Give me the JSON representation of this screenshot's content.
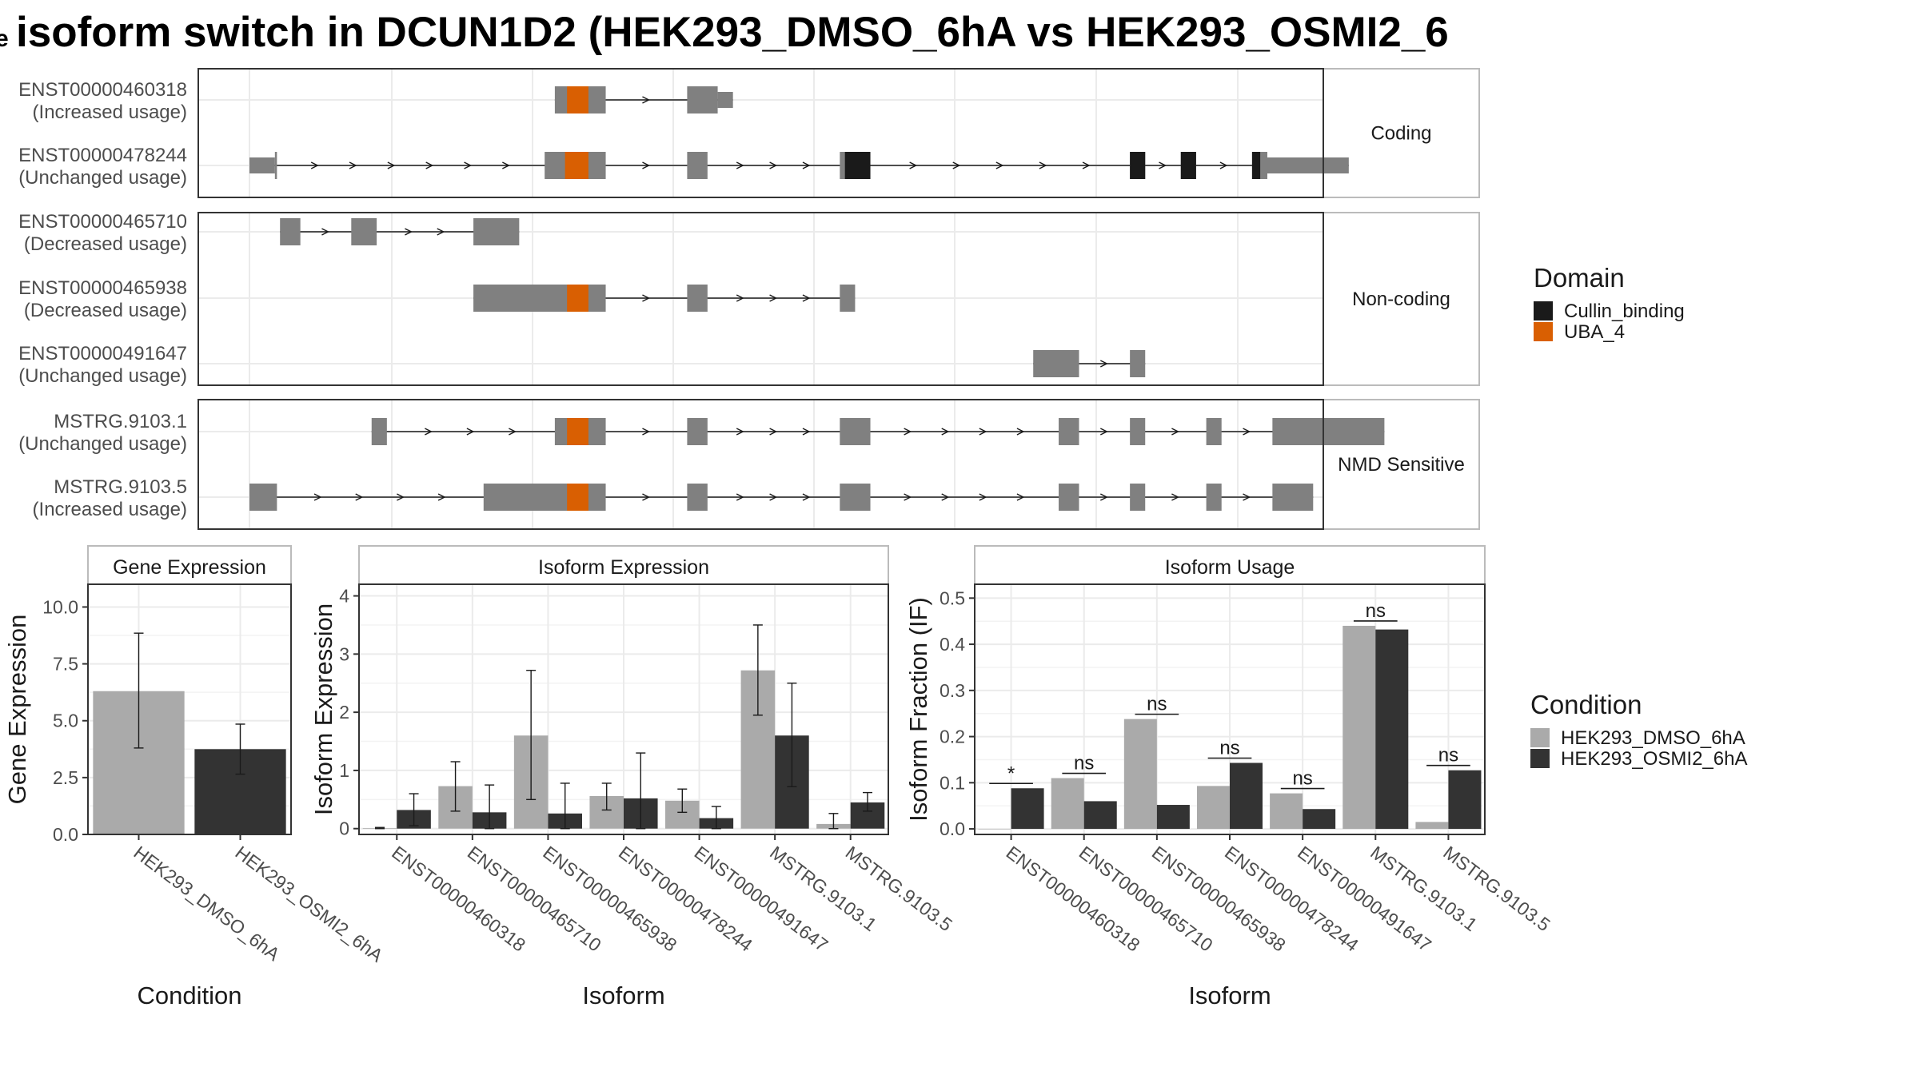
{
  "title": "isoform switch in DCUN1D2 (HEK293_DMSO_6hA vs HEK293_OSMI2_6",
  "title_prefix": "e",
  "colors": {
    "exon": "#808080",
    "cullin": "#1a1a1a",
    "uba": "#d95f02",
    "dmso": "#aaaaaa",
    "osmi": "#333333",
    "panel_border": "#333333",
    "strip_border": "#bbbbbb",
    "grid": "#ebebeb"
  },
  "structure": {
    "x_range": [
      0,
      100
    ],
    "groups": [
      {
        "label": "Coding",
        "transcripts": [
          {
            "id": "ENST00000460318",
            "status": "(Increased usage)",
            "exons": [
              [
                30,
                35,
                "tall"
              ],
              [
                43,
                46,
                "tall"
              ],
              [
                46,
                47.5,
                "short"
              ]
            ],
            "domains": [
              [
                31.2,
                33.3,
                "uba"
              ]
            ]
          },
          {
            "id": "ENST00000478244",
            "status": "(Unchanged usage)",
            "exons": [
              [
                0,
                2.5,
                "short"
              ],
              [
                2.5,
                2.7,
                "tall"
              ],
              [
                29,
                35,
                "tall"
              ],
              [
                43,
                45,
                "tall"
              ],
              [
                58,
                61,
                "tall"
              ],
              [
                86.5,
                88,
                "tall"
              ],
              [
                91.5,
                93,
                "tall"
              ],
              [
                98.5,
                100,
                "tall"
              ],
              [
                100,
                108,
                "short"
              ]
            ],
            "domains": [
              [
                31,
                33.3,
                "uba"
              ],
              [
                58.5,
                61,
                "cullin"
              ],
              [
                86.5,
                88,
                "cullin"
              ],
              [
                91.5,
                93,
                "cullin"
              ],
              [
                98.5,
                99.3,
                "cullin"
              ]
            ]
          }
        ]
      },
      {
        "label": "Non-coding",
        "transcripts": [
          {
            "id": "ENST00000465710",
            "status": "(Decreased usage)",
            "exons": [
              [
                3,
                5,
                "tall"
              ],
              [
                10,
                12.5,
                "tall"
              ],
              [
                22,
                26.5,
                "tall"
              ]
            ],
            "domains": []
          },
          {
            "id": "ENST00000465938",
            "status": "(Decreased usage)",
            "exons": [
              [
                22,
                35,
                "tall"
              ],
              [
                43,
                45,
                "tall"
              ],
              [
                58,
                59.5,
                "tall"
              ]
            ],
            "domains": [
              [
                31.2,
                33.3,
                "uba"
              ]
            ]
          },
          {
            "id": "ENST00000491647",
            "status": "(Unchanged usage)",
            "exons": [
              [
                77,
                81.5,
                "tall"
              ],
              [
                86.5,
                88,
                "tall"
              ]
            ],
            "domains": []
          }
        ]
      },
      {
        "label": "NMD Sensitive",
        "transcripts": [
          {
            "id": "MSTRG.9103.1",
            "status": "(Unchanged usage)",
            "exons": [
              [
                12,
                13.5,
                "tall"
              ],
              [
                30,
                35,
                "tall"
              ],
              [
                43,
                45,
                "tall"
              ],
              [
                58,
                61,
                "tall"
              ],
              [
                79.5,
                81.5,
                "tall"
              ],
              [
                86.5,
                88,
                "tall"
              ],
              [
                94,
                95.5,
                "tall"
              ],
              [
                100.5,
                111.5,
                "tall"
              ]
            ],
            "domains": [
              [
                31.2,
                33.3,
                "uba"
              ]
            ]
          },
          {
            "id": "MSTRG.9103.5",
            "status": "(Increased usage)",
            "exons": [
              [
                0,
                2.7,
                "tall"
              ],
              [
                23,
                35,
                "tall"
              ],
              [
                43,
                45,
                "tall"
              ],
              [
                58,
                61,
                "tall"
              ],
              [
                79.5,
                81.5,
                "tall"
              ],
              [
                86.5,
                88,
                "tall"
              ],
              [
                94,
                95.5,
                "tall"
              ],
              [
                100.5,
                104.5,
                "tall"
              ]
            ],
            "domains": [
              [
                31.2,
                33.3,
                "uba"
              ]
            ]
          }
        ]
      }
    ]
  },
  "domain_legend": {
    "title": "Domain",
    "items": [
      {
        "label": "Cullin_binding",
        "color": "#1a1a1a"
      },
      {
        "label": "UBA_4",
        "color": "#d95f02"
      }
    ]
  },
  "condition_legend": {
    "title": "Condition",
    "items": [
      {
        "label": "HEK293_DMSO_6hA",
        "color": "#aaaaaa"
      },
      {
        "label": "HEK293_OSMI2_6hA",
        "color": "#333333"
      }
    ]
  },
  "chart_data": [
    {
      "type": "bar",
      "title": "Gene Expression",
      "xlabel": "Condition",
      "ylabel": "Gene Expression",
      "categories": [
        "HEK293_DMSO_6hA",
        "HEK293_OSMI2_6hA"
      ],
      "values": [
        6.3,
        3.75
      ],
      "err_low": [
        3.8,
        2.65
      ],
      "err_high": [
        8.85,
        4.85
      ],
      "ylim": [
        0,
        11
      ],
      "yticks": [
        0,
        2.5,
        5,
        7.5,
        10
      ],
      "ytick_labels": [
        "0.0",
        "2.5",
        "5.0",
        "7.5",
        "10.0"
      ]
    },
    {
      "type": "bar",
      "title": "Isoform Expression",
      "xlabel": "Isoform",
      "ylabel": "Isoform Expression",
      "categories": [
        "ENST00000460318",
        "ENST00000465710",
        "ENST00000465938",
        "ENST00000478244",
        "ENST00000491647",
        "MSTRG.9103.1",
        "MSTRG.9103.5"
      ],
      "series": [
        {
          "name": "HEK293_DMSO_6hA",
          "values": [
            0.01,
            0.73,
            1.6,
            0.56,
            0.48,
            2.72,
            0.08
          ],
          "err_low": [
            0.0,
            0.3,
            0.5,
            0.32,
            0.28,
            1.95,
            0.0
          ],
          "err_high": [
            0.02,
            1.15,
            2.72,
            0.78,
            0.68,
            3.5,
            0.26
          ]
        },
        {
          "name": "HEK293_OSMI2_6hA",
          "values": [
            0.32,
            0.28,
            0.26,
            0.52,
            0.18,
            1.6,
            0.45
          ],
          "err_low": [
            0.05,
            0.0,
            0.0,
            0.0,
            0.0,
            0.72,
            0.3
          ],
          "err_high": [
            0.6,
            0.75,
            0.78,
            1.3,
            0.38,
            2.5,
            0.62
          ]
        }
      ],
      "ylim": [
        -0.1,
        4.2
      ],
      "yticks": [
        0,
        1,
        2,
        3,
        4
      ],
      "ytick_labels": [
        "0",
        "1",
        "2",
        "3",
        "4"
      ]
    },
    {
      "type": "bar",
      "title": "Isoform Usage",
      "xlabel": "Isoform",
      "ylabel": "Isoform Fraction (IF)",
      "categories": [
        "ENST00000460318",
        "ENST00000465710",
        "ENST00000465938",
        "ENST00000478244",
        "ENST00000491647",
        "MSTRG.9103.1",
        "MSTRG.9103.5"
      ],
      "series": [
        {
          "name": "HEK293_DMSO_6hA",
          "values": [
            0.0,
            0.11,
            0.238,
            0.093,
            0.077,
            0.44,
            0.015
          ]
        },
        {
          "name": "HEK293_OSMI2_6hA",
          "values": [
            0.088,
            0.06,
            0.052,
            0.143,
            0.043,
            0.432,
            0.127
          ]
        }
      ],
      "significance": [
        "*",
        "ns",
        "ns",
        "ns",
        "ns",
        "ns",
        "ns"
      ],
      "ylim": [
        -0.012,
        0.53
      ],
      "yticks": [
        0,
        0.1,
        0.2,
        0.3,
        0.4,
        0.5
      ],
      "ytick_labels": [
        "0.0",
        "0.1",
        "0.2",
        "0.3",
        "0.4",
        "0.5"
      ]
    }
  ]
}
